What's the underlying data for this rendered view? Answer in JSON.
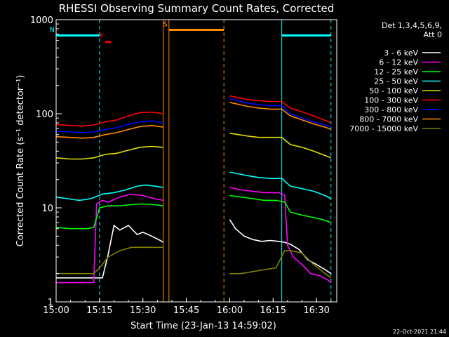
{
  "chart_data": {
    "type": "line",
    "title": "RHESSI Observing Summary Count Rates, Corrected",
    "ylabel": "Corrected Count Rate (s⁻¹ detector⁻¹)",
    "xlabel": "Start Time (23-Jan-13 14:59:02)",
    "y_scale": "log",
    "ylim": [
      1,
      1000
    ],
    "xlim": [
      "15:00",
      "16:37"
    ],
    "x_ticks": [
      "15:00",
      "15:15",
      "15:30",
      "15:45",
      "16:00",
      "16:15",
      "16:30"
    ],
    "y_ticks": [
      "1",
      "10",
      "100",
      "1000"
    ],
    "grid": false,
    "legend_position": "right",
    "legend_header": [
      "Det 1,3,4,5,6,9,",
      "Att 0"
    ],
    "date_stamp": "22-Oct-2021 21:44",
    "series": [
      {
        "name": "3 - 6 keV",
        "color": "#ffffff",
        "times": [
          "15:00",
          "15:10",
          "15:16",
          "15:18",
          "15:20",
          "15:22",
          "15:25",
          "15:28",
          "15:30",
          "15:33",
          "15:36",
          "15:37"
        ],
        "values": [
          1.8,
          1.8,
          1.8,
          3.2,
          6.5,
          5.8,
          6.5,
          5.2,
          5.5,
          5.0,
          4.5,
          4.3
        ],
        "times2": [
          "16:00",
          "16:02",
          "16:05",
          "16:08",
          "16:11",
          "16:14",
          "16:17",
          "16:19",
          "16:21",
          "16:24",
          "16:27",
          "16:30",
          "16:33",
          "16:35"
        ],
        "values2": [
          7.5,
          6.0,
          5.0,
          4.6,
          4.4,
          4.5,
          4.4,
          4.3,
          4.1,
          3.6,
          2.8,
          2.5,
          2.2,
          2.0
        ]
      },
      {
        "name": "6 - 12 keV",
        "color": "#ff00ff",
        "times": [
          "15:00",
          "15:10",
          "15:13",
          "15:14",
          "15:16",
          "15:18",
          "15:22",
          "15:26",
          "15:30",
          "15:34",
          "15:37"
        ],
        "values": [
          1.6,
          1.6,
          1.6,
          11.0,
          12.0,
          11.5,
          13.0,
          14.0,
          13.5,
          12.5,
          12.0
        ],
        "times2": [
          "16:00",
          "16:04",
          "16:08",
          "16:12",
          "16:17",
          "16:19",
          "16:20",
          "16:22",
          "16:25",
          "16:28",
          "16:31",
          "16:34",
          "16:35"
        ],
        "values2": [
          16.5,
          15.5,
          15.0,
          14.5,
          14.5,
          13.5,
          4.0,
          3.0,
          2.5,
          2.0,
          1.9,
          1.7,
          1.6
        ]
      },
      {
        "name": "12 - 25 keV",
        "color": "#00ff00",
        "times": [
          "15:00",
          "15:05",
          "15:09",
          "15:11",
          "15:13",
          "15:15",
          "15:18",
          "15:22",
          "15:26",
          "15:30",
          "15:34",
          "15:37"
        ],
        "values": [
          6.2,
          6.0,
          6.0,
          6.0,
          6.2,
          10.0,
          10.5,
          10.5,
          10.8,
          11.0,
          10.8,
          10.5
        ],
        "times2": [
          "16:00",
          "16:04",
          "16:08",
          "16:12",
          "16:16",
          "16:19",
          "16:21",
          "16:24",
          "16:28",
          "16:32",
          "16:35"
        ],
        "values2": [
          13.5,
          13.0,
          12.5,
          12.0,
          12.0,
          11.5,
          9.0,
          8.5,
          8.0,
          7.5,
          7.0
        ]
      },
      {
        "name": "25 - 50 keV",
        "color": "#00ffff",
        "times": [
          "15:00",
          "15:04",
          "15:08",
          "15:12",
          "15:16",
          "15:20",
          "15:24",
          "15:28",
          "15:31",
          "15:34",
          "15:37"
        ],
        "values": [
          13.0,
          12.5,
          12.0,
          12.5,
          14.0,
          14.5,
          15.5,
          17.0,
          17.5,
          17.0,
          16.5
        ],
        "times2": [
          "16:00",
          "16:03",
          "16:06",
          "16:10",
          "16:14",
          "16:18",
          "16:21",
          "16:25",
          "16:29",
          "16:33",
          "16:35"
        ],
        "values2": [
          24.0,
          23.0,
          22.0,
          21.0,
          20.5,
          20.5,
          17.0,
          16.0,
          15.0,
          13.5,
          12.5
        ]
      },
      {
        "name": "50 - 100 keV",
        "color": "#e0e000",
        "times": [
          "15:00",
          "15:05",
          "15:09",
          "15:13",
          "15:17",
          "15:21",
          "15:25",
          "15:29",
          "15:33",
          "15:37"
        ],
        "values": [
          34.0,
          33.0,
          33.0,
          34.0,
          37.0,
          38.0,
          41.0,
          44.0,
          45.0,
          44.0
        ],
        "times2": [
          "16:00",
          "16:03",
          "16:06",
          "16:10",
          "16:14",
          "16:18",
          "16:21",
          "16:25",
          "16:29",
          "16:33",
          "16:35"
        ],
        "values2": [
          62.0,
          60.0,
          58.0,
          56.0,
          56.0,
          56.0,
          47.0,
          44.0,
          40.0,
          36.0,
          34.0
        ]
      },
      {
        "name": "100 - 300 keV",
        "color": "#ff0000",
        "times": [
          "15:00",
          "15:05",
          "15:09",
          "15:13",
          "15:17",
          "15:21",
          "15:25",
          "15:29",
          "15:33",
          "15:37"
        ],
        "values": [
          77.0,
          75.0,
          74.0,
          76.0,
          82.0,
          86.0,
          95.0,
          103.0,
          104.0,
          100.0
        ],
        "times2": [
          "16:00",
          "16:03",
          "16:06",
          "16:10",
          "16:14",
          "16:18",
          "16:21",
          "16:25",
          "16:29",
          "16:33",
          "16:35"
        ],
        "values2": [
          155.0,
          148.0,
          142.0,
          138.0,
          135.0,
          135.0,
          115.0,
          105.0,
          95.0,
          85.0,
          80.0
        ]
      },
      {
        "name": "300 - 800 keV",
        "color": "#0000ff",
        "times": [
          "15:00",
          "15:05",
          "15:09",
          "15:13",
          "15:17",
          "15:21",
          "15:25",
          "15:29",
          "15:33",
          "15:37"
        ],
        "values": [
          65.0,
          64.0,
          63.0,
          64.0,
          68.0,
          71.0,
          77.0,
          82.0,
          84.0,
          80.0
        ],
        "times2": [
          "16:00",
          "16:03",
          "16:06",
          "16:10",
          "16:14",
          "16:18",
          "16:21",
          "16:25",
          "16:29",
          "16:33",
          "16:35"
        ],
        "values2": [
          145.0,
          138.0,
          130.0,
          125.0,
          122.0,
          122.0,
          100.0,
          90.0,
          82.0,
          76.0,
          72.0
        ]
      },
      {
        "name": "800 - 7000 keV",
        "color": "#ff8c00",
        "times": [
          "15:00",
          "15:05",
          "15:09",
          "15:13",
          "15:17",
          "15:21",
          "15:25",
          "15:29",
          "15:33",
          "15:37"
        ],
        "values": [
          57.0,
          56.0,
          55.0,
          56.0,
          60.0,
          63.0,
          68.0,
          73.0,
          75.0,
          72.0
        ],
        "times2": [
          "16:00",
          "16:03",
          "16:06",
          "16:10",
          "16:14",
          "16:18",
          "16:21",
          "16:25",
          "16:29",
          "16:33",
          "16:35"
        ],
        "values2": [
          132.0,
          126.0,
          120.0,
          115.0,
          112.0,
          112.0,
          95.0,
          86.0,
          78.0,
          72.0,
          68.0
        ]
      },
      {
        "name": "7000 - 15000 keV",
        "color": "#808000",
        "times": [
          "15:00",
          "15:10",
          "15:13",
          "15:15",
          "15:18",
          "15:22",
          "15:26",
          "15:30",
          "15:34",
          "15:37"
        ],
        "values": [
          2.0,
          2.0,
          2.0,
          2.3,
          3.0,
          3.5,
          3.8,
          3.8,
          3.8,
          3.8
        ],
        "times2": [
          "16:00",
          "16:04",
          "16:08",
          "16:12",
          "16:16",
          "16:19",
          "16:21",
          "16:25",
          "16:29",
          "16:33",
          "16:35"
        ],
        "values2": [
          2.0,
          2.0,
          2.1,
          2.2,
          2.3,
          3.5,
          3.5,
          3.3,
          2.5,
          2.0,
          1.8
        ]
      }
    ],
    "flags": [
      {
        "label": "F",
        "color": "#ff0000",
        "level": 580,
        "start": "15:17",
        "end": "15:19"
      },
      {
        "label": "N",
        "color": "#00ffff",
        "level": 680,
        "start": "15:00",
        "end": "15:15"
      },
      {
        "label": "",
        "color": "#00ffff",
        "level": 680,
        "start": "16:18",
        "end": "16:35"
      },
      {
        "label": "S",
        "color": "#ff8c00",
        "level": 780,
        "start": "15:39",
        "end": "15:58"
      }
    ],
    "vlines": [
      {
        "time": "15:00",
        "color": "#00ffff",
        "style": "solid"
      },
      {
        "time": "15:15",
        "color": "#00ffff",
        "style": "dashed"
      },
      {
        "time": "16:18",
        "color": "#00ffff",
        "style": "solid"
      },
      {
        "time": "16:35",
        "color": "#00ffff",
        "style": "dashed"
      },
      {
        "time": "15:37",
        "color": "#ff8c00",
        "style": "solid"
      },
      {
        "time": "15:39",
        "color": "#ff8c00",
        "style": "solid"
      },
      {
        "time": "15:58",
        "color": "#ff8c00",
        "style": "dashed"
      }
    ]
  }
}
